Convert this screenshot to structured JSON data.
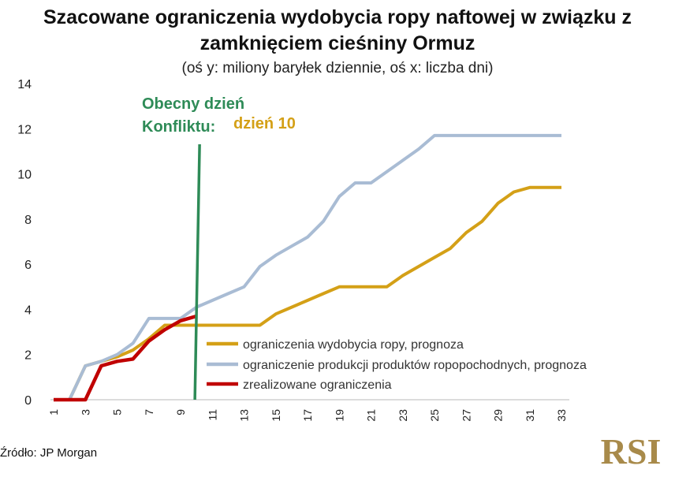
{
  "header": {
    "title_line1": "Szacowane ograniczenia wydobycia ropy naftowej w związku z",
    "title_line2": "zamknięciem cieśniny Ormuz",
    "subtitle": "(oś y: miliony baryłek dziennie, oś x: liczba dni)"
  },
  "chart_data": {
    "type": "line",
    "title": "Szacowane ograniczenia wydobycia ropy naftowej w związku z zamknięciem cieśniny Ormuz",
    "xlabel": "liczba dni",
    "ylabel": "miliony baryłek dziennie",
    "xlim": [
      1,
      33
    ],
    "ylim": [
      0,
      14
    ],
    "x_ticks": [
      "1",
      "3",
      "5",
      "7",
      "9",
      "11",
      "13",
      "15",
      "17",
      "19",
      "21",
      "23",
      "25",
      "27",
      "29",
      "31",
      "33"
    ],
    "y_ticks": [
      "0",
      "2",
      "4",
      "6",
      "8",
      "10",
      "12",
      "14"
    ],
    "series": [
      {
        "name": "ograniczenia wydobycia ropy, prognoza",
        "color": "#d4a017",
        "x": [
          1,
          2,
          3,
          4,
          5,
          6,
          7,
          8,
          9,
          10,
          11,
          12,
          13,
          14,
          15,
          16,
          17,
          18,
          19,
          20,
          21,
          22,
          23,
          24,
          25,
          26,
          27,
          28,
          29,
          30,
          31,
          32,
          33
        ],
        "values": [
          0,
          0,
          1.5,
          1.7,
          1.9,
          2.2,
          2.7,
          3.3,
          3.3,
          3.3,
          3.3,
          3.3,
          3.3,
          3.3,
          3.8,
          4.1,
          4.4,
          4.7,
          5.0,
          5.0,
          5.0,
          5.0,
          5.5,
          5.9,
          6.3,
          6.7,
          7.4,
          7.9,
          8.7,
          9.2,
          9.4,
          9.4,
          9.4
        ]
      },
      {
        "name": "ograniczenie produkcji produktów ropopochodnych, prognoza",
        "color": "#a9bcd4",
        "x": [
          1,
          2,
          3,
          4,
          5,
          6,
          7,
          8,
          9,
          10,
          11,
          12,
          13,
          14,
          15,
          16,
          17,
          18,
          19,
          20,
          21,
          22,
          23,
          24,
          25,
          26,
          27,
          28,
          29,
          30,
          31,
          32,
          33
        ],
        "values": [
          0,
          0,
          1.5,
          1.7,
          2.0,
          2.5,
          3.6,
          3.6,
          3.6,
          4.1,
          4.4,
          4.7,
          5.0,
          5.9,
          6.4,
          6.8,
          7.2,
          7.9,
          9.0,
          9.6,
          9.6,
          10.1,
          10.6,
          11.1,
          11.7,
          11.7,
          11.7,
          11.7,
          11.7,
          11.7,
          11.7,
          11.7,
          11.7
        ]
      },
      {
        "name": "zrealizowane ograniczenia",
        "color": "#c00000",
        "x": [
          1,
          2,
          3,
          4,
          5,
          6,
          7,
          8,
          9,
          10
        ],
        "values": [
          0,
          0,
          0,
          1.5,
          1.7,
          1.8,
          2.6,
          3.1,
          3.5,
          3.7
        ]
      }
    ],
    "annotations": {
      "current_day": 10,
      "label_line1": "Obecny dzień",
      "label_line2": "Konfliktu:",
      "label_value": "dzień 10",
      "line_color": "#2e8b57",
      "value_color": "#d4a017"
    },
    "legend_position": "bottom-right"
  },
  "footer": {
    "source": "Źródło: JP Morgan",
    "logo_text": "RSI"
  }
}
